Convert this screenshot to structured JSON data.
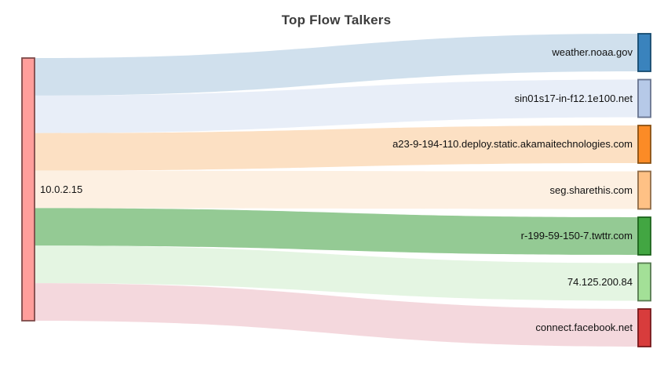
{
  "chart_data": {
    "type": "sankey",
    "title": "Top Flow Talkers",
    "background": "#ffffff",
    "legend": "none",
    "source_node": {
      "label": "10.0.2.15",
      "color": "#ff9e9b",
      "border_color": "#7e4a49"
    },
    "target_nodes": [
      {
        "label": "weather.noaa.gov",
        "color": "#3a83bd",
        "border_color": "#164a6f",
        "flow_color": "#d0e0ed"
      },
      {
        "label": "sin01s17-in-f12.1e100.net",
        "color": "#b6c9e8",
        "border_color": "#68748f",
        "flow_color": "#e8eef8"
      },
      {
        "label": "a23-9-194-110.deploy.static.akamaitechnologies.com",
        "color": "#fb8b26",
        "border_color": "#8a5012",
        "flow_color": "#fce0c3"
      },
      {
        "label": "seg.sharethis.com",
        "color": "#fec185",
        "border_color": "#8f6c48",
        "flow_color": "#fdf0e2"
      },
      {
        "label": "r-199-59-150-7.twttr.com",
        "color": "#42a642",
        "border_color": "#1d641d",
        "flow_color": "#94ca94"
      },
      {
        "label": "74.125.200.84",
        "color": "#a3e097",
        "border_color": "#567a50",
        "flow_color": "#e4f5e2"
      },
      {
        "label": "connect.facebook.net",
        "color": "#d83c3c",
        "border_color": "#77191c",
        "flow_color": "#f4d8dd"
      }
    ],
    "links": [
      {
        "source": "10.0.2.15",
        "target": "weather.noaa.gov",
        "value": 1
      },
      {
        "source": "10.0.2.15",
        "target": "sin01s17-in-f12.1e100.net",
        "value": 1
      },
      {
        "source": "10.0.2.15",
        "target": "a23-9-194-110.deploy.static.akamaitechnologies.com",
        "value": 1
      },
      {
        "source": "10.0.2.15",
        "target": "seg.sharethis.com",
        "value": 1
      },
      {
        "source": "10.0.2.15",
        "target": "r-199-59-150-7.twttr.com",
        "value": 1
      },
      {
        "source": "10.0.2.15",
        "target": "74.125.200.84",
        "value": 1
      },
      {
        "source": "10.0.2.15",
        "target": "connect.facebook.net",
        "value": 1
      }
    ]
  }
}
